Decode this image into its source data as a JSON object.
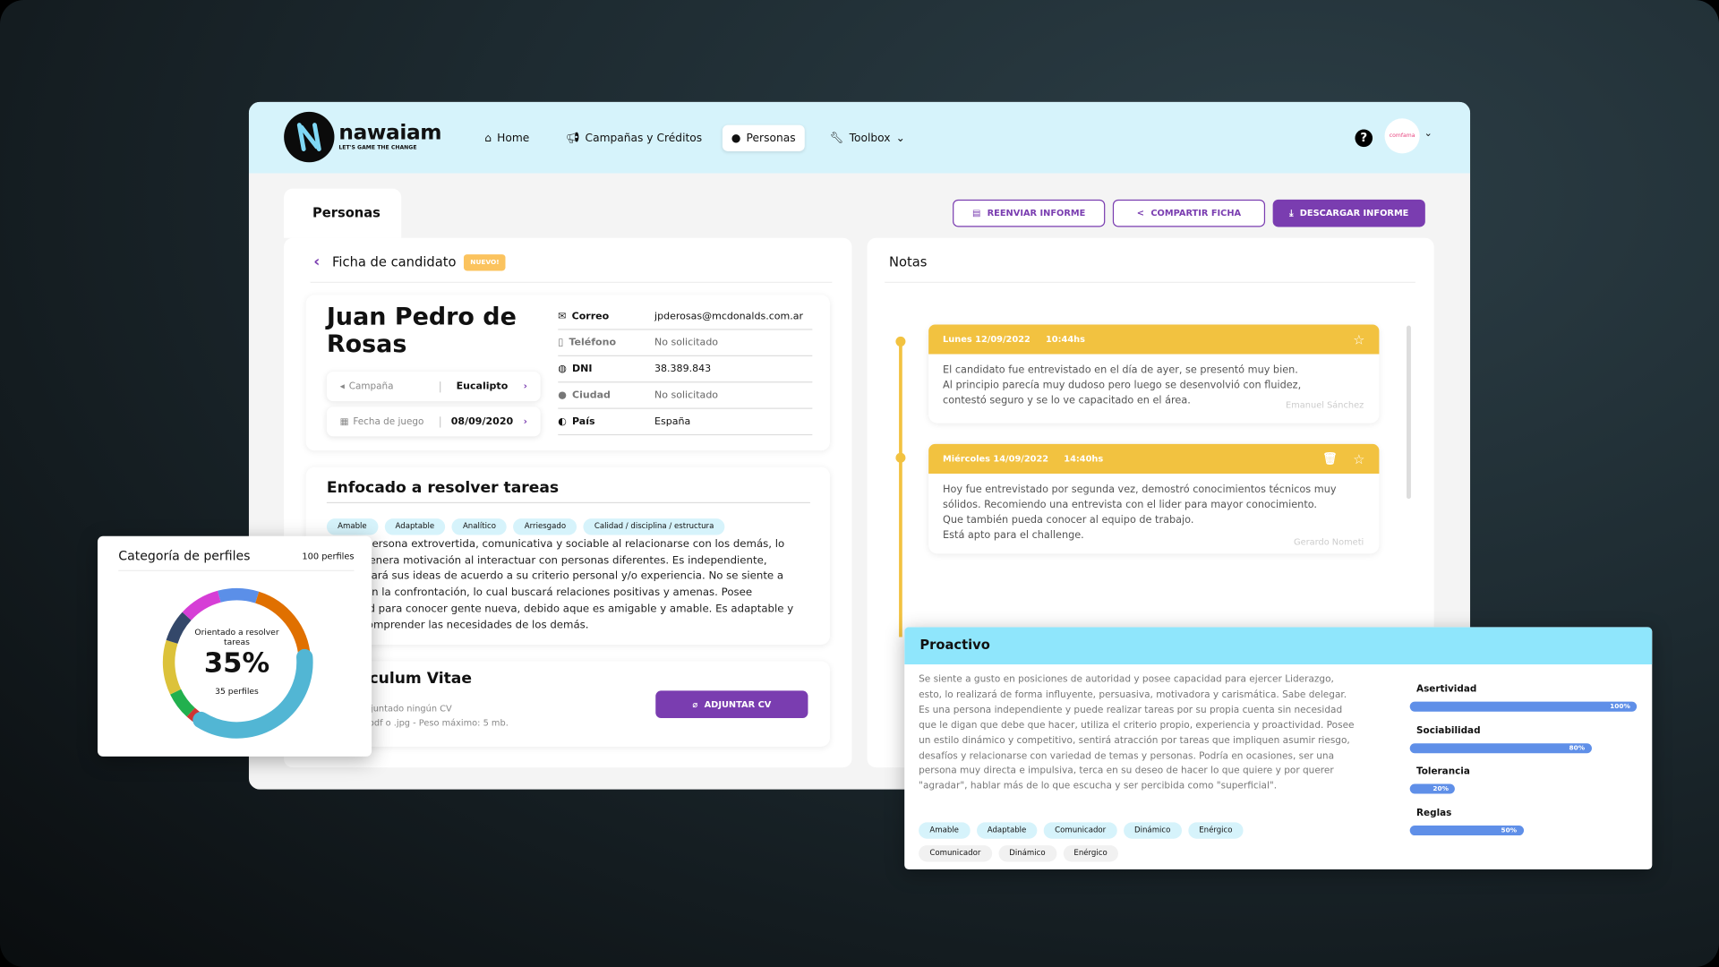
{
  "header": {
    "brand": "nawaiam",
    "tagline": "LET'S GAME THE CHANGE",
    "nav": [
      {
        "label": "Home",
        "icon": "home-icon"
      },
      {
        "label": "Campañas y Créditos",
        "icon": "megaphone-icon"
      },
      {
        "label": "Personas",
        "icon": "user-icon",
        "active": true
      },
      {
        "label": "Toolbox",
        "icon": "wrench-icon"
      }
    ],
    "help": "?",
    "avatar_text": "comfama"
  },
  "tab": "Personas",
  "actions": {
    "resend": "REENVIAR INFORME",
    "share": "COMPARTIR FICHA",
    "download": "DESCARGAR INFORME"
  },
  "ficha": {
    "title": "Ficha de candidato",
    "badge": "NUEVO!",
    "name": "Juan Pedro de Rosas",
    "campaign_label": "Campaña",
    "campaign_value": "Eucalipto",
    "date_label": "Fecha de juego",
    "date_value": "08/09/2020",
    "info": [
      {
        "k": "Correo",
        "v": "jpderosas@mcdonalds.com.ar"
      },
      {
        "k": "Teléfono",
        "v": "No solicitado"
      },
      {
        "k": "DNI",
        "v": "38.389.843"
      },
      {
        "k": "Ciudad",
        "v": "No solicitado"
      },
      {
        "k": "País",
        "v": "España"
      }
    ]
  },
  "profile": {
    "title": "Enfocado a resolver tareas",
    "tags": [
      "Amable",
      "Adaptable",
      "Analítico",
      "Arriesgado",
      "Calidad / disciplina / estructura"
    ],
    "lines": [
      "Es una persona extrovertida, comunicativa y sociable al relacionarse con los demás, lo",
      "que le genera motivación al interactuar con personas diferentes. Es independiente,",
      "comunicará sus ideas de acuerdo a su criterio personal y/o experiencia. No se siente a",
      "gusto con la confrontación, lo cual buscará relaciones positivas y amenas. Posee",
      "habilidad para conocer gente nueva, debido aque es amigable y amable. Es adaptable y",
      "busca comprender las necesidades de los demás."
    ]
  },
  "cv": {
    "title": "Curriculum Vitae",
    "line1": "No has adjuntado ningún CV",
    "line2": "Formato .pdf o .jpg - Peso máximo: 5 mb.",
    "button": "ADJUNTAR CV"
  },
  "notes": {
    "title": "Notas",
    "items": [
      {
        "date": "Lunes 12/09/2022",
        "time": "10:44hs",
        "lines": [
          "El candidato fue entrevistado en el día de ayer, se presentó muy bien.",
          "Al principio parecía muy dudoso pero luego se desenvolvió con fluidez,",
          "contestó seguro y se lo ve capacitado en el área."
        ],
        "author": "Emanuel Sánchez"
      },
      {
        "date": "Miércoles 14/09/2022",
        "time": "14:40hs",
        "lines": [
          "Hoy fue entrevistado por segunda vez, demostró conocimientos técnicos muy",
          "sólidos. Recomiendo una entrevista con el lider para mayor conocimiento.",
          "Que también pueda conocer al equipo de trabajo.",
          "Está apto para el challenge."
        ],
        "author": "Gerardo Nometi"
      }
    ]
  },
  "proactivo": {
    "title": "Proactivo",
    "lines": [
      "Se siente a gusto en posiciones de autoridad y posee capacidad para ejercer Liderazgo,",
      "esto, lo realizará de  forma  influyente,  persuasiva, motivadora  y  carismática. Sabe delegar.",
      "Es una persona independiente y puede realizar tareas por su propia cuenta sin necesidad",
      "que le digan que debe que hacer, utiliza el criterio propio, experiencia y proactividad. Posee",
      "un estilo dinámico y competitivo, sentirá atracción por tareas que impliquen asumir riesgo,",
      "desafíos y relacionarse con variedad de temas y personas. Podría en ocasiones, ser una",
      "persona muy directa e impulsiva, terca en su deseo de hacer  lo  que  quiere  y  por  querer",
      "\"agradar\",  hablar  más  de  lo  que  escucha  y  ser percibida como \"superficial\"."
    ],
    "tags_blue": [
      "Amable",
      "Adaptable",
      "Comunicador",
      "Dinámico",
      "Enérgico"
    ],
    "tags_gray": [
      "Comunicador",
      "Dinámico",
      "Enérgico"
    ],
    "bars": [
      {
        "label": "Asertividad",
        "value": 100,
        "text": "100%"
      },
      {
        "label": "Sociabilidad",
        "value": 80,
        "text": "80%"
      },
      {
        "label": "Tolerancia",
        "value": 20,
        "text": "20%"
      },
      {
        "label": "Reglas",
        "value": 50,
        "text": "50%"
      }
    ]
  },
  "chart_data": {
    "type": "pie",
    "title": "Categoría de perfiles",
    "total_label": "100 perfiles",
    "center_label": "Orientado a resolver tareas",
    "center_value": "35%",
    "center_sub": "35 perfiles",
    "slices": [
      {
        "value": 9,
        "color": "#5b8fe8"
      },
      {
        "value": 19,
        "color": "#e07000"
      },
      {
        "value": 35,
        "color": "#52b6d4",
        "highlight": true
      },
      {
        "value": 3,
        "color": "#d03535"
      },
      {
        "value": 6,
        "color": "#22b04e"
      },
      {
        "value": 12,
        "color": "#dcc23a"
      },
      {
        "value": 7,
        "color": "#34486a"
      },
      {
        "value": 9,
        "color": "#d63ed6"
      }
    ]
  },
  "colors": {
    "accent": "#7a3db0",
    "header_bg": "#d6f3fb",
    "note": "#f2c240",
    "proactivo": "#8fe6fc",
    "bar": "#5f8fe8"
  }
}
